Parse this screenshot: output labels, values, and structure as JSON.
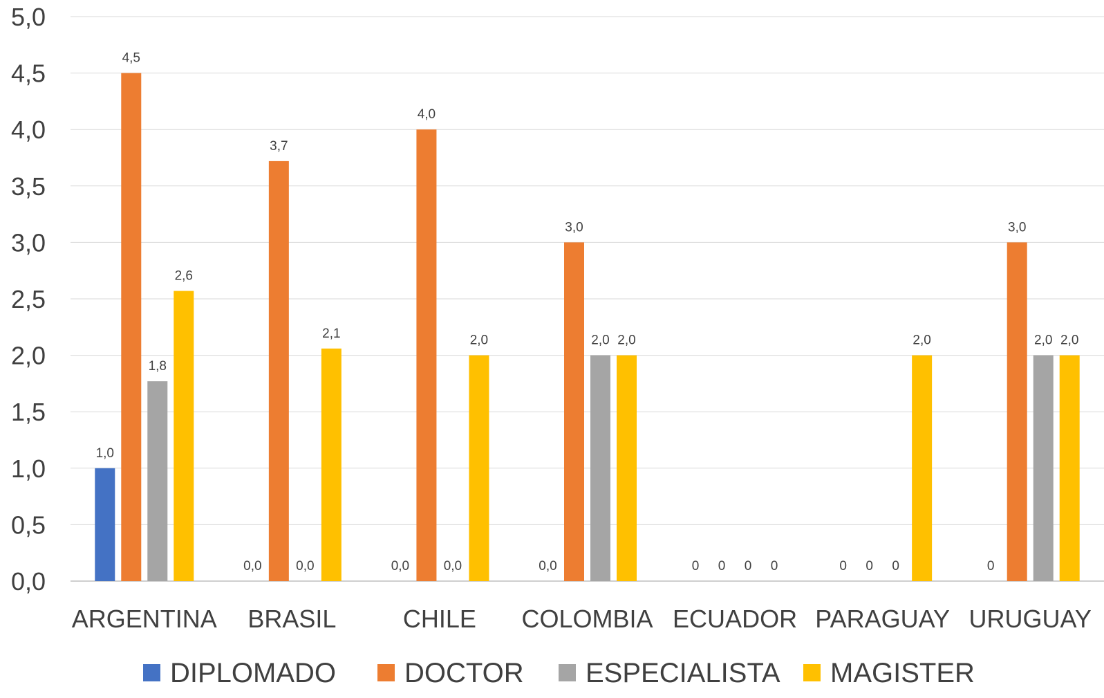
{
  "chart_data": {
    "type": "bar",
    "title": "",
    "xlabel": "",
    "ylabel": "",
    "ylim": [
      0,
      5
    ],
    "yticks": [
      "0,0",
      "0,5",
      "1,0",
      "1,5",
      "2,0",
      "2,5",
      "3,0",
      "3,5",
      "4,0",
      "4,5",
      "5,0"
    ],
    "grid": true,
    "legend_position": "bottom",
    "categories": [
      "ARGENTINA",
      "BRASIL",
      "CHILE",
      "COLOMBIA",
      "ECUADOR",
      "PARAGUAY",
      "URUGUAY"
    ],
    "series": [
      {
        "name": "DIPLOMADO",
        "color": "#4472C4",
        "values": [
          1.0,
          0.0,
          0.0,
          0.0,
          0,
          0,
          0
        ],
        "labels": [
          "1,0",
          "0,0",
          "0,0",
          "0,0",
          "0",
          "0",
          "0"
        ]
      },
      {
        "name": "DOCTOR",
        "color": "#ED7D31",
        "values": [
          4.5,
          3.72,
          4.0,
          3.0,
          0,
          0,
          3.0
        ],
        "labels": [
          "4,5",
          "3,7",
          "4,0",
          "3,0",
          "0",
          "0",
          "3,0"
        ]
      },
      {
        "name": "ESPECIALISTA",
        "color": "#A5A5A5",
        "values": [
          1.77,
          0.0,
          0.0,
          2.0,
          0,
          0,
          2.0
        ],
        "labels": [
          "1,8",
          "0,0",
          "0,0",
          "2,0",
          "0",
          "0",
          "2,0"
        ]
      },
      {
        "name": "MAGISTER",
        "color": "#FFC000",
        "values": [
          2.57,
          2.06,
          2.0,
          2.0,
          0,
          2.0,
          2.0
        ],
        "labels": [
          "2,6",
          "2,1",
          "2,0",
          "2,0",
          "0",
          "2,0",
          "2,0"
        ]
      }
    ]
  }
}
